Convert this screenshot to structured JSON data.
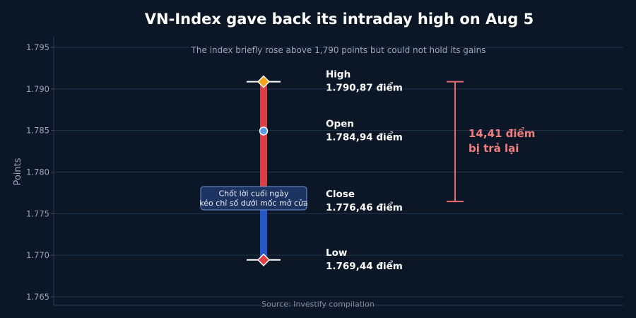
{
  "chart_data": {
    "type": "range",
    "title": "VN-Index gave back its intraday high on Aug 5",
    "subtitle": "The index briefly rose above 1,790 points but could not hold its gains",
    "ylabel": "Points",
    "ylim": [
      1.7645,
      1.7965
    ],
    "yticks": [
      1.765,
      1.77,
      1.775,
      1.78,
      1.785,
      1.79,
      1.795
    ],
    "ytick_labels": [
      "1.765",
      "1.770",
      "1.775",
      "1.780",
      "1.785",
      "1.790",
      "1.795"
    ],
    "points": [
      {
        "key": "high",
        "name": "High",
        "value": 1.79087,
        "value_label": "1.790,87 điểm"
      },
      {
        "key": "open",
        "name": "Open",
        "value": 1.78494,
        "value_label": "1.784,94 điểm"
      },
      {
        "key": "close",
        "name": "Close",
        "value": 1.77646,
        "value_label": "1.776,46 điểm"
      },
      {
        "key": "low",
        "name": "Low",
        "value": 1.76944,
        "value_label": "1.769,44 điểm"
      }
    ],
    "range_annotation": {
      "line1": "14,41 điểm",
      "line2": "bị trả lại",
      "from": 1.79087,
      "to": 1.77646
    },
    "note": {
      "line1": "Chốt lời cuối ngày",
      "line2": "kéo chỉ số dưới mốc mở cửa"
    },
    "source": "Source: Investify compilation",
    "grid": true,
    "colors": {
      "background": "#0b1727",
      "upper_bar": "#d94045",
      "lower_bar": "#2456c8",
      "high_marker": "#f2a31b",
      "open_marker": "#5b9be3",
      "low_marker": "#e03b3f",
      "range_bracket": "#e86a6f",
      "range_text": "#f07e7e"
    }
  }
}
